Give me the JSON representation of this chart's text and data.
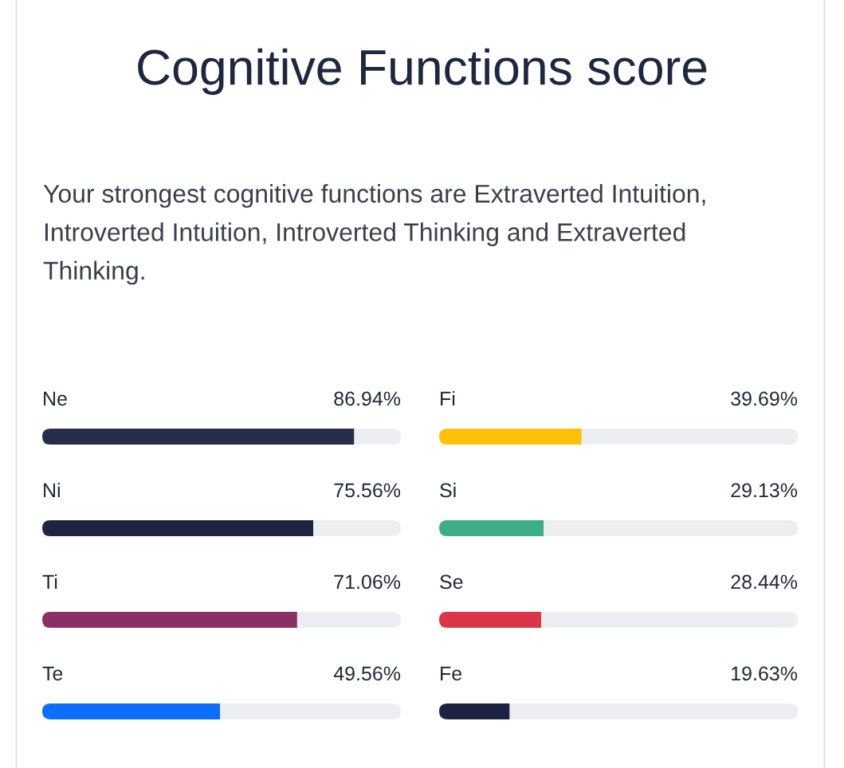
{
  "chart_data": [
    {
      "type": "bar",
      "orientation": "horizontal",
      "title": "Cognitive Functions score",
      "subtitle": "Your strongest cognitive functions are Extraverted Intuition,\nIntroverted Intuition, Introverted Thinking and Extraverted\nThinking.",
      "categories": [
        "Ne",
        "Ni",
        "Ti",
        "Te"
      ],
      "values": [
        86.94,
        75.56,
        71.06,
        49.56
      ],
      "colors": [
        "#252d4b",
        "#1e2542",
        "#8b2f64",
        "#0d6efd"
      ],
      "value_labels": [
        "86.94%",
        "75.56%",
        "71.06%",
        "49.56%"
      ],
      "xlim": [
        0,
        100
      ],
      "tick_labels": "y"
    },
    {
      "type": "bar",
      "orientation": "horizontal",
      "categories": [
        "Fi",
        "Si",
        "Se",
        "Fe"
      ],
      "values": [
        39.69,
        29.13,
        28.44,
        19.63
      ],
      "colors": [
        "#ffc107",
        "#3dae85",
        "#dc3545",
        "#1c2340"
      ],
      "value_labels": [
        "39.69%",
        "29.13%",
        "28.44%",
        "19.63%"
      ],
      "xlim": [
        0,
        100
      ],
      "tick_labels": "y"
    }
  ]
}
